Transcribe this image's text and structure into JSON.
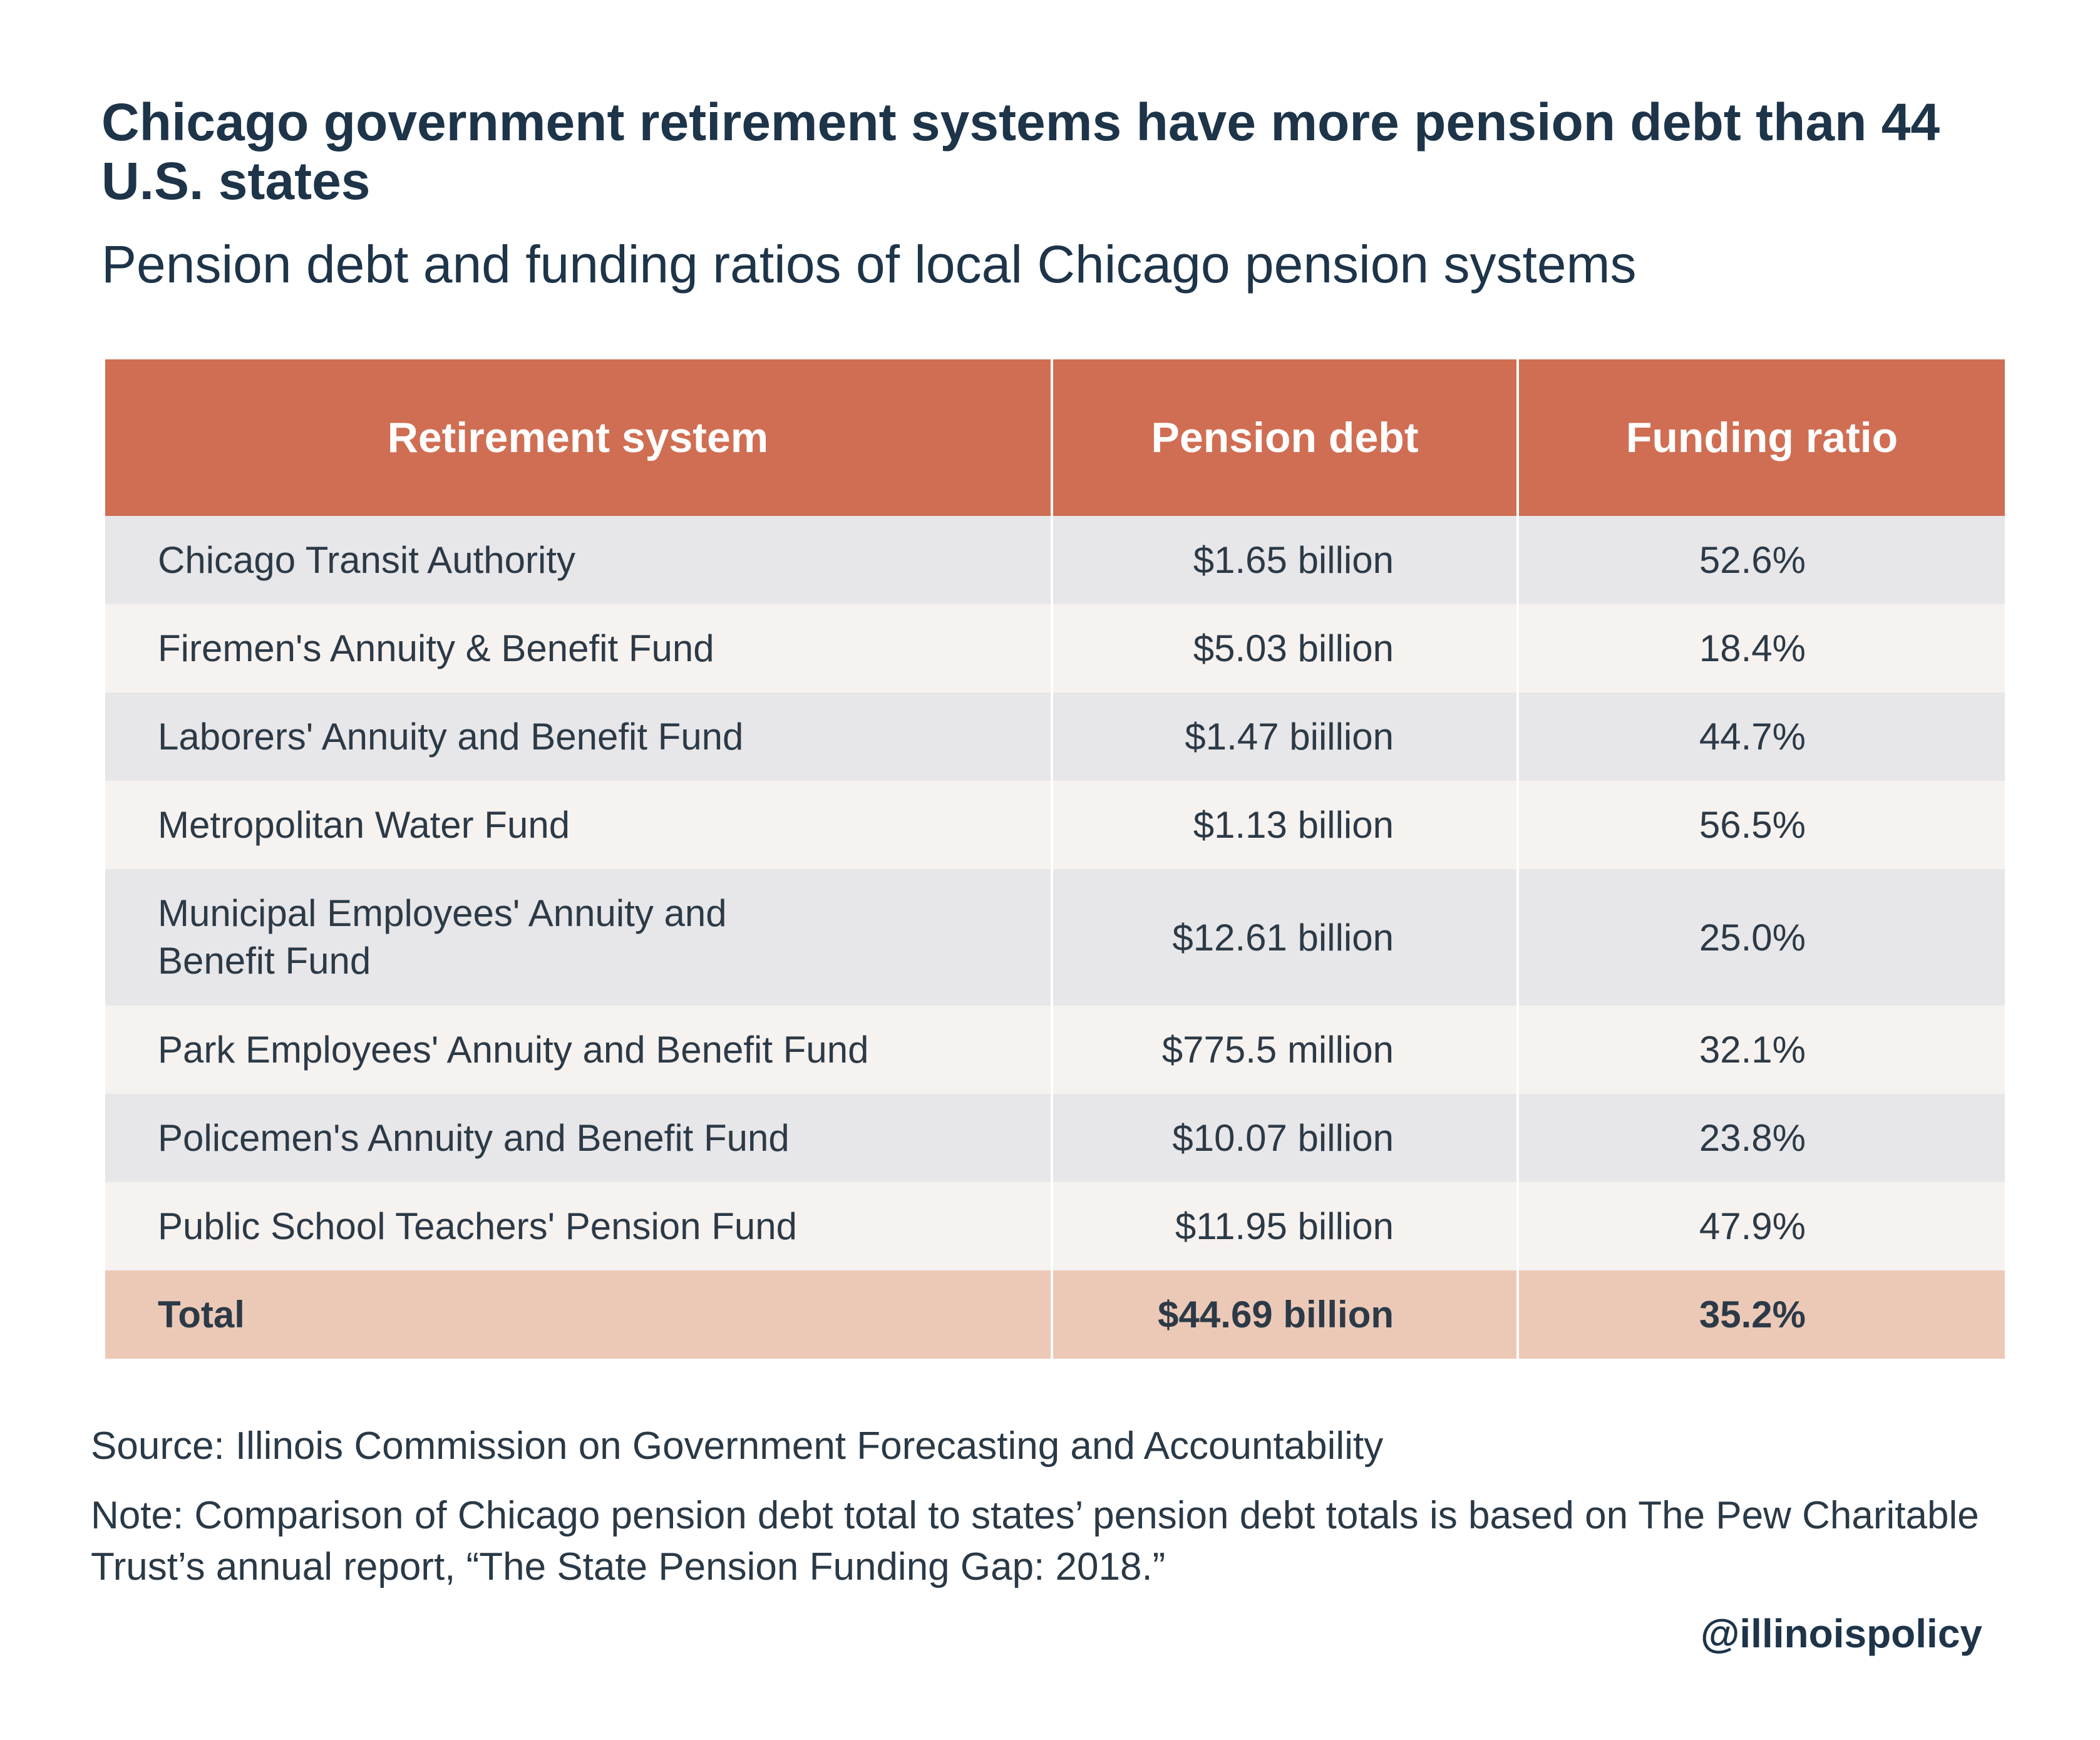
{
  "title": "Chicago government retirement systems have more pension debt than 44 U.S. states",
  "subtitle": "Pension debt and funding ratios of local Chicago pension systems",
  "chart_data": {
    "type": "table",
    "columns": [
      "Retirement system",
      "Pension debt",
      "Funding ratio"
    ],
    "rows": [
      {
        "system": "Chicago Transit Authority",
        "debt": "$1.65 billion",
        "ratio": "52.6%"
      },
      {
        "system": "Firemen's Annuity & Benefit Fund",
        "debt": "$5.03 billion",
        "ratio": "18.4%"
      },
      {
        "system": "Laborers' Annuity and Benefit Fund",
        "debt": "$1.47 biillion",
        "ratio": "44.7%"
      },
      {
        "system": "Metropolitan Water Fund",
        "debt": "$1.13 billion",
        "ratio": "56.5%"
      },
      {
        "system": "Municipal Employees' Annuity and Benefit Fund",
        "debt": "$12.61 billion",
        "ratio": "25.0%"
      },
      {
        "system": "Park Employees' Annuity and Benefit Fund",
        "debt": "$775.5 million",
        "ratio": "32.1%"
      },
      {
        "system": "Policemen's Annuity and Benefit Fund",
        "debt": "$10.07 billion",
        "ratio": "23.8%"
      },
      {
        "system": "Public School Teachers' Pension Fund",
        "debt": "$11.95 billion",
        "ratio": "47.9%"
      }
    ],
    "total": {
      "system": "Total",
      "debt": "$44.69 billion",
      "ratio": "35.2%"
    }
  },
  "source": "Source: Illinois Commission on Government Forecasting and Accountability",
  "note": "Note: Comparison of  Chicago pension debt total to states’ pension debt totals is based on The Pew Charitable Trust’s annual report, “The State Pension Funding Gap: 2018.”",
  "handle": "@illinoispolicy",
  "colors": {
    "header": "#d06e53",
    "row_alt_1": "#e7e6e8",
    "row_alt_2": "#f6f2ef",
    "total_row": "#ecc9b7",
    "text": "#1d3449"
  }
}
